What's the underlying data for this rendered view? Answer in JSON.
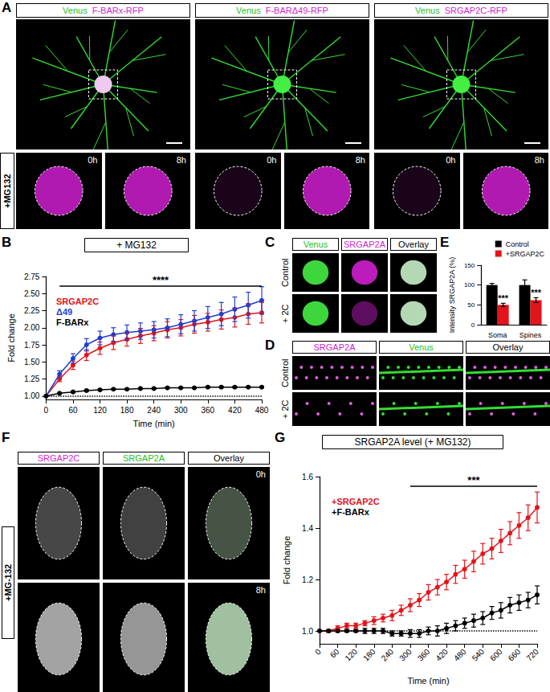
{
  "chart_data": [
    {
      "panel_label": "B",
      "type": "line",
      "title": "+ MG132",
      "x_label": "Time (min)",
      "y_label": "Fold change",
      "x": [
        0,
        30,
        60,
        90,
        120,
        150,
        180,
        210,
        240,
        270,
        300,
        330,
        360,
        390,
        420,
        450,
        480
      ],
      "series": [
        {
          "name": "SRGAP2C",
          "color": "#e3141b",
          "values": [
            1.0,
            1.25,
            1.45,
            1.6,
            1.7,
            1.78,
            1.83,
            1.88,
            1.92,
            1.97,
            2.0,
            2.05,
            2.08,
            2.12,
            2.15,
            2.2,
            2.22
          ],
          "errors": [
            0,
            0.04,
            0.06,
            0.08,
            0.09,
            0.1,
            0.1,
            0.11,
            0.11,
            0.12,
            0.12,
            0.13,
            0.13,
            0.14,
            0.14,
            0.15,
            0.15
          ]
        },
        {
          "name": "Δ49",
          "color": "#1f3fd1",
          "values": [
            1.0,
            1.32,
            1.55,
            1.75,
            1.85,
            1.9,
            1.93,
            1.95,
            1.97,
            2.0,
            2.05,
            2.1,
            2.15,
            2.2,
            2.27,
            2.33,
            2.4
          ],
          "errors": [
            0,
            0.05,
            0.07,
            0.09,
            0.1,
            0.1,
            0.11,
            0.12,
            0.12,
            0.13,
            0.14,
            0.15,
            0.16,
            0.17,
            0.18,
            0.19,
            0.2
          ]
        },
        {
          "name": "F-BARx",
          "color": "#000000",
          "values": [
            1.0,
            1.04,
            1.06,
            1.08,
            1.09,
            1.1,
            1.1,
            1.11,
            1.11,
            1.12,
            1.12,
            1.12,
            1.13,
            1.13,
            1.13,
            1.13,
            1.13
          ],
          "errors": [
            0,
            0.01,
            0.01,
            0.01,
            0.01,
            0.01,
            0.01,
            0.01,
            0.01,
            0.01,
            0.01,
            0.01,
            0.01,
            0.01,
            0.01,
            0.01,
            0.01
          ]
        }
      ],
      "xlim": [
        0,
        480
      ],
      "xticks": [
        0,
        60,
        120,
        180,
        240,
        300,
        360,
        420,
        480
      ],
      "ylim": [
        0.95,
        2.75
      ],
      "yticks": [
        {
          "value": 1,
          "label": "1.00"
        },
        1.25,
        {
          "value": 1.5,
          "label": "1.50"
        },
        1.75,
        {
          "value": 2,
          "label": "2.00"
        },
        2.25,
        {
          "value": 2.5,
          "label": "2.50"
        },
        2.75
      ],
      "baseline": 1,
      "significance": {
        "text": "****",
        "x_range": [
          30,
          480
        ]
      },
      "marker": "circle",
      "legend": "upper left",
      "grid": false
    },
    {
      "panel_label": "E",
      "type": "bar",
      "y_label": "Intensity SRGAP2A (%)",
      "categories": [
        "Soma",
        "Spines"
      ],
      "series": [
        {
          "name": "Control",
          "color": "#000000",
          "values": [
            100,
            100
          ],
          "errors": [
            4,
            13
          ]
        },
        {
          "name": "+SRGAP2C",
          "color": "#e3141b",
          "values": [
            50,
            62
          ],
          "errors": [
            4,
            6
          ],
          "significance": [
            "***",
            "***"
          ]
        }
      ],
      "ylim": [
        0,
        150
      ],
      "yticks": [
        0,
        50,
        100,
        150
      ],
      "legend": "upper right",
      "grid": false
    },
    {
      "panel_label": "G",
      "type": "line",
      "title": "SRGAP2A level (+ MG132)",
      "x_label": "Time (min)",
      "y_label": "Fold change",
      "x": [
        0,
        30,
        60,
        90,
        120,
        150,
        180,
        210,
        240,
        270,
        300,
        330,
        360,
        390,
        420,
        450,
        480,
        510,
        540,
        570,
        600,
        630,
        660,
        690,
        720
      ],
      "series": [
        {
          "name": "+SRGAP2C",
          "color": "#e3141b",
          "values": [
            1.0,
            1.0,
            1.01,
            1.02,
            1.02,
            1.03,
            1.04,
            1.05,
            1.06,
            1.08,
            1.1,
            1.12,
            1.15,
            1.17,
            1.19,
            1.22,
            1.24,
            1.27,
            1.3,
            1.32,
            1.35,
            1.38,
            1.41,
            1.44,
            1.48
          ],
          "errors": [
            0,
            0.005,
            0.01,
            0.01,
            0.01,
            0.01,
            0.015,
            0.015,
            0.02,
            0.02,
            0.025,
            0.025,
            0.03,
            0.03,
            0.03,
            0.035,
            0.035,
            0.04,
            0.04,
            0.04,
            0.045,
            0.045,
            0.05,
            0.05,
            0.06
          ]
        },
        {
          "name": "+F-BARx",
          "color": "#000000",
          "values": [
            1.0,
            1.0,
            1.0,
            1.0,
            1.0,
            1.0,
            1.0,
            1.0,
            0.99,
            0.99,
            0.99,
            0.99,
            1.0,
            1.0,
            1.01,
            1.02,
            1.03,
            1.04,
            1.05,
            1.07,
            1.08,
            1.1,
            1.11,
            1.12,
            1.14
          ],
          "errors": [
            0,
            0.005,
            0.005,
            0.005,
            0.005,
            0.01,
            0.01,
            0.01,
            0.01,
            0.01,
            0.015,
            0.015,
            0.015,
            0.02,
            0.02,
            0.02,
            0.02,
            0.025,
            0.025,
            0.025,
            0.03,
            0.03,
            0.03,
            0.03,
            0.035
          ]
        }
      ],
      "xlim": [
        0,
        720
      ],
      "xticks": [
        0,
        60,
        120,
        180,
        240,
        300,
        360,
        420,
        480,
        540,
        600,
        660,
        720
      ],
      "ylim": [
        0.95,
        1.6
      ],
      "yticks": [
        {
          "value": 1,
          "label": "1.0"
        },
        1.2,
        1.4,
        1.6
      ],
      "baseline": 1,
      "significance": {
        "text": "***",
        "x_range": [
          300,
          720
        ]
      },
      "marker": "circle",
      "legend": "upper left",
      "grid": false
    }
  ],
  "image_panels": [
    {
      "panel_label": "A",
      "row_label": "+MG132",
      "columns": [
        {
          "channels": [
            {
              "text": "Venus",
              "color": "#1fbf1f"
            },
            {
              "text": "F-BARx-RFP",
              "color": "#d01fd0"
            }
          ],
          "insets": [
            "0h",
            "8h"
          ]
        },
        {
          "channels": [
            {
              "text": "Venus",
              "color": "#1fbf1f"
            },
            {
              "text": "F-BARΔ49-RFP",
              "color": "#d01fd0"
            }
          ],
          "insets": [
            "0h",
            "8h"
          ]
        },
        {
          "channels": [
            {
              "text": "Venus",
              "color": "#1fbf1f"
            },
            {
              "text": "SRGAP2C-RFP",
              "color": "#d01fd0"
            }
          ],
          "insets": [
            "0h",
            "8h"
          ]
        }
      ]
    },
    {
      "panel_label": "C",
      "channels": [
        {
          "text": "Venus",
          "color": "#1fbf1f"
        },
        {
          "text": "SRGAP2A",
          "color": "#d01fd0"
        },
        {
          "text": "Overlay",
          "color": "#000000"
        }
      ],
      "rows": [
        "Control",
        "+ 2C"
      ]
    },
    {
      "panel_label": "D",
      "channels": [
        {
          "text": "SRGAP2A",
          "color": "#d01fd0"
        },
        {
          "text": "Venus",
          "color": "#1fbf1f"
        },
        {
          "text": "Overlay",
          "color": "#000000"
        }
      ],
      "rows": [
        "Control",
        "+ 2C"
      ]
    },
    {
      "panel_label": "F",
      "row_label": "+MG-132",
      "channels": [
        {
          "text": "SRGAP2C",
          "color": "#d01fd0"
        },
        {
          "text": "SRGAP2A",
          "color": "#1fbf1f"
        },
        {
          "text": "Overlay",
          "color": "#000000"
        }
      ],
      "rows": [
        "0h",
        "8h"
      ]
    }
  ]
}
